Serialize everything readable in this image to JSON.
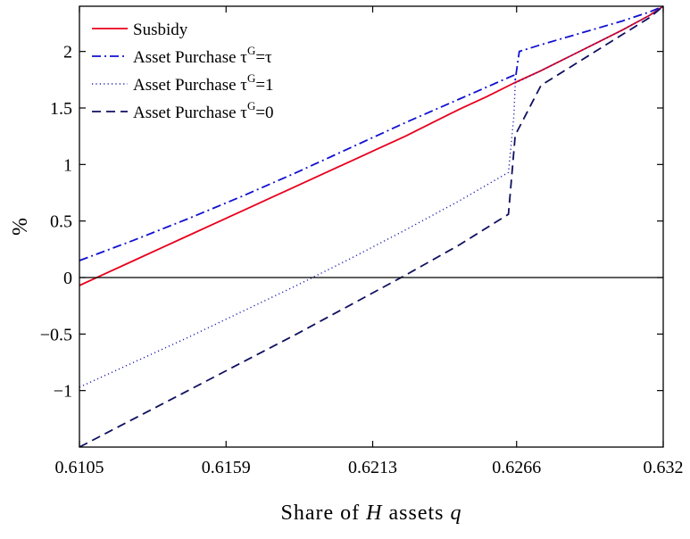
{
  "chart_data": {
    "type": "line",
    "title": "",
    "xlabel": {
      "prefix": "Share of ",
      "var1": "H",
      "middle": " assets ",
      "var2": "q"
    },
    "ylabel": "%",
    "xlim": [
      0.6105,
      0.632
    ],
    "ylim": [
      -1.5,
      2.4
    ],
    "xticks": [
      0.6105,
      0.6159,
      0.6213,
      0.6266,
      0.632
    ],
    "xtick_labels": [
      "0.6105",
      "0.6159",
      "0.6213",
      "0.6266",
      "0.632"
    ],
    "yticks": [
      -1,
      -0.5,
      0,
      0.5,
      1,
      1.5,
      2
    ],
    "ytick_labels": [
      "−1",
      "−0.5",
      "0",
      "0.5",
      "1",
      "1.5",
      "2"
    ],
    "grid": false,
    "legend_position": "top-left",
    "reference_line_y": 0,
    "series": [
      {
        "name": "Susbidy",
        "legend": {
          "main": "Susbidy",
          "sup": "",
          "suffix": ""
        },
        "color": "#e8001c",
        "style": "solid",
        "x": [
          0.6105,
          0.6115,
          0.6125,
          0.6135,
          0.6145,
          0.6155,
          0.6165,
          0.6175,
          0.6185,
          0.6195,
          0.6205,
          0.6215,
          0.6225,
          0.6235,
          0.6245,
          0.6255,
          0.6265,
          0.6275,
          0.6285,
          0.6295,
          0.6305,
          0.6315,
          0.632
        ],
        "y": [
          -0.07,
          0.04,
          0.15,
          0.26,
          0.37,
          0.48,
          0.59,
          0.7,
          0.81,
          0.92,
          1.03,
          1.14,
          1.25,
          1.37,
          1.49,
          1.6,
          1.72,
          1.83,
          1.95,
          2.07,
          2.19,
          2.32,
          2.4
        ]
      },
      {
        "name": "Asset Purchase τG=τ",
        "legend": {
          "main": "Asset Purchase τ",
          "sup": "G",
          "suffix": "=τ"
        },
        "color": "#1010d0",
        "style": "dashdot",
        "x": [
          0.6105,
          0.6125,
          0.6145,
          0.6165,
          0.6185,
          0.6205,
          0.6225,
          0.6245,
          0.6265,
          0.62655,
          0.6267,
          0.6275,
          0.6285,
          0.6295,
          0.6305,
          0.6315,
          0.632
        ],
        "y": [
          0.15,
          0.33,
          0.52,
          0.72,
          0.93,
          1.15,
          1.37,
          1.58,
          1.79,
          1.75,
          2.0,
          2.06,
          2.13,
          2.2,
          2.27,
          2.35,
          2.4
        ]
      },
      {
        "name": "Asset Purchase τG=1",
        "legend": {
          "main": "Asset Purchase τ",
          "sup": "G",
          "suffix": "=1"
        },
        "color": "#2020b0",
        "style": "dotted",
        "x": [
          0.6105,
          0.6125,
          0.6145,
          0.6165,
          0.6185,
          0.6205,
          0.6225,
          0.6245,
          0.6263,
          0.6265,
          0.62655,
          0.6275,
          0.6285,
          0.6295,
          0.6305,
          0.6315,
          0.632
        ],
        "y": [
          -0.97,
          -0.75,
          -0.53,
          -0.3,
          -0.07,
          0.17,
          0.42,
          0.68,
          0.93,
          1.43,
          1.72,
          1.83,
          1.95,
          2.07,
          2.19,
          2.32,
          2.4
        ]
      },
      {
        "name": "Asset Purchase τG=0",
        "legend": {
          "main": "Asset Purchase τ",
          "sup": "G",
          "suffix": "=0"
        },
        "color": "#101060",
        "style": "dashed",
        "x": [
          0.6105,
          0.6125,
          0.6145,
          0.6165,
          0.6185,
          0.6205,
          0.6225,
          0.6245,
          0.6263,
          0.62655,
          0.6275,
          0.6285,
          0.6295,
          0.6305,
          0.6315,
          0.632
        ],
        "y": [
          -1.5,
          -1.25,
          -1.0,
          -0.75,
          -0.5,
          -0.24,
          0.02,
          0.29,
          0.56,
          1.26,
          1.7,
          1.85,
          2.0,
          2.15,
          2.3,
          2.4
        ]
      }
    ]
  }
}
